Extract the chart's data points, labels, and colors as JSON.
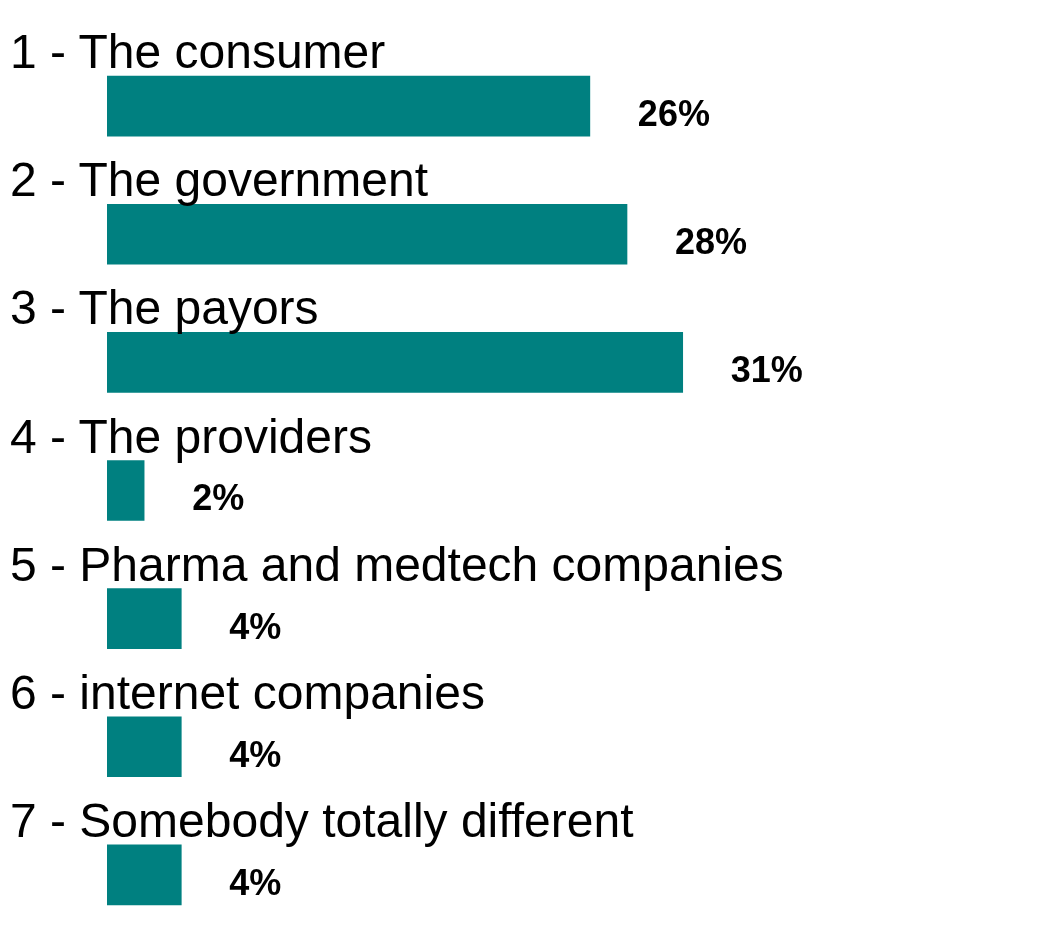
{
  "chart_data": {
    "type": "bar",
    "orientation": "horizontal",
    "categories": [
      "1 - The consumer",
      "2 - The government",
      "3 - The payors",
      "4 - The providers",
      "5 - Pharma and medtech companies",
      "6 - internet companies",
      "7 - Somebody totally different"
    ],
    "values": [
      26,
      28,
      31,
      2,
      4,
      4,
      4
    ],
    "value_labels": [
      "26%",
      "28%",
      "31%",
      "2%",
      "4%",
      "4%",
      "4%"
    ],
    "color": "#008080"
  }
}
